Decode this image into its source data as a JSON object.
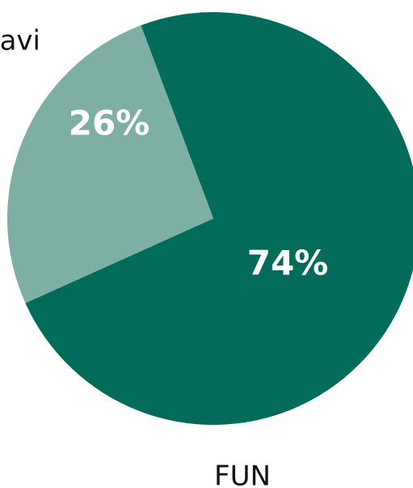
{
  "chart_data": {
    "type": "pie",
    "title": "",
    "slices": [
      {
        "name": "FUN",
        "value": 74,
        "label": "74%",
        "color": "#026B5A"
      },
      {
        "name": "avi",
        "value": 26,
        "label": "26%",
        "color": "#7EAFA5"
      }
    ],
    "legend": "outside-labels"
  }
}
